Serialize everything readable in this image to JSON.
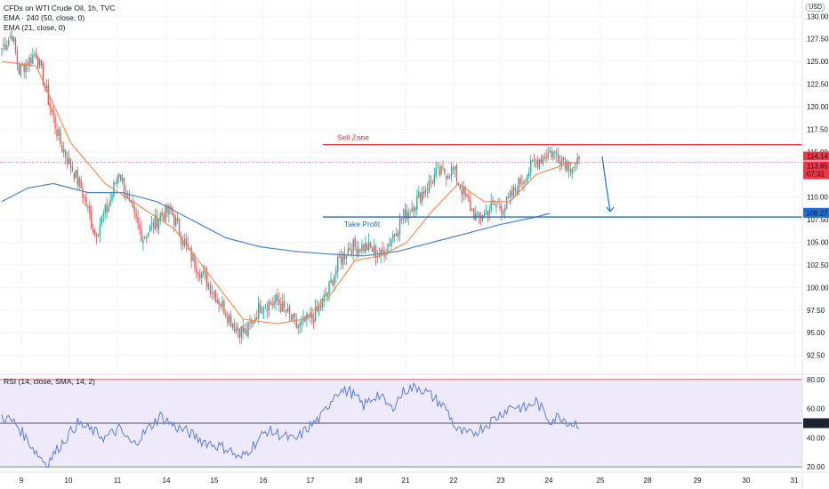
{
  "legend": {
    "title": "CFDs on WTI Crude Oil, 1h, TVC",
    "ema240": "EMA · 240 (50, close, 0)",
    "ema21": "EMA (21, close, 0)",
    "rsi": "RSI (14, close, SMA, 14, 2)"
  },
  "currency": "USD",
  "annotations": {
    "sell_zone": "Sell Zone",
    "take_profit": "Take Profit"
  },
  "price_labels": {
    "current_price": "113.85",
    "ask_price": "114.14",
    "countdown": "07:31",
    "target_price": "108.27",
    "rsi_value": "50.02"
  },
  "colors": {
    "sell_zone": "#f23645",
    "take_profit": "#1e6fd9",
    "ema21": "#f7874b",
    "ema240": "#4b82d4",
    "rsi_line": "#5b7fe0",
    "rsi_band": "#eeeafb",
    "up_candle": "#26a69a",
    "down_candle": "#ef5350"
  },
  "chart_data": [
    {
      "type": "candlestick",
      "title": "CFDs on WTI Crude Oil, 1h, TVC",
      "x_ticks": [
        "9",
        "10",
        "11",
        "14",
        "15",
        "16",
        "17",
        "18",
        "21",
        "22",
        "23",
        "24",
        "25",
        "28",
        "29",
        "30",
        "31"
      ],
      "y_ticks": [
        "92.50",
        "95.00",
        "97.50",
        "100.00",
        "102.50",
        "105.00",
        "107.50",
        "110.00",
        "112.50",
        "115.00",
        "117.50",
        "120.00",
        "122.50",
        "125.00",
        "127.50",
        "130.00"
      ],
      "ylim": [
        90.5,
        131.8
      ],
      "close_anchors": [
        [
          0,
          126.5
        ],
        [
          6,
          128.0
        ],
        [
          10,
          124.0
        ],
        [
          20,
          126.0
        ],
        [
          28,
          120.0
        ],
        [
          34,
          116.0
        ],
        [
          46,
          111.0
        ],
        [
          54,
          106.0
        ],
        [
          62,
          109.0
        ],
        [
          68,
          113.0
        ],
        [
          74,
          109.0
        ],
        [
          82,
          105.5
        ],
        [
          92,
          108.0
        ],
        [
          98,
          108.5
        ],
        [
          108,
          104.0
        ],
        [
          118,
          101.0
        ],
        [
          128,
          98.0
        ],
        [
          136,
          95.5
        ],
        [
          142,
          95.0
        ],
        [
          150,
          98.0
        ],
        [
          160,
          98.5
        ],
        [
          172,
          95.5
        ],
        [
          182,
          97.0
        ],
        [
          188,
          99.0
        ],
        [
          196,
          103.0
        ],
        [
          202,
          104.5
        ],
        [
          212,
          104.5
        ],
        [
          220,
          103.5
        ],
        [
          232,
          107.5
        ],
        [
          242,
          110.0
        ],
        [
          252,
          112.5
        ],
        [
          262,
          113.0
        ],
        [
          270,
          109.5
        ],
        [
          276,
          107.5
        ],
        [
          284,
          109.0
        ],
        [
          292,
          109.0
        ],
        [
          302,
          112.0
        ],
        [
          310,
          114.0
        ],
        [
          318,
          115.0
        ],
        [
          324,
          114.5
        ],
        [
          330,
          113.5
        ]
      ],
      "ema21_anchors": [
        [
          0,
          125.0
        ],
        [
          20,
          124.5
        ],
        [
          40,
          116.0
        ],
        [
          60,
          111.5
        ],
        [
          80,
          109.0
        ],
        [
          100,
          106.5
        ],
        [
          120,
          101.5
        ],
        [
          140,
          96.5
        ],
        [
          160,
          96.0
        ],
        [
          175,
          96.5
        ],
        [
          190,
          99.0
        ],
        [
          205,
          103.0
        ],
        [
          220,
          103.5
        ],
        [
          235,
          105.0
        ],
        [
          250,
          108.5
        ],
        [
          265,
          111.5
        ],
        [
          280,
          109.5
        ],
        [
          295,
          109.5
        ],
        [
          310,
          112.5
        ],
        [
          330,
          113.8
        ]
      ],
      "ema240_anchors": [
        [
          0,
          109.5
        ],
        [
          15,
          111.0
        ],
        [
          30,
          111.5
        ],
        [
          50,
          110.5
        ],
        [
          70,
          110.5
        ],
        [
          90,
          109.5
        ],
        [
          110,
          107.5
        ],
        [
          130,
          105.5
        ],
        [
          150,
          104.5
        ],
        [
          170,
          104.0
        ],
        [
          190,
          103.7
        ],
        [
          210,
          103.5
        ],
        [
          230,
          104.0
        ],
        [
          250,
          105.0
        ],
        [
          270,
          106.0
        ],
        [
          290,
          107.0
        ],
        [
          310,
          107.8
        ],
        [
          318,
          108.2
        ]
      ],
      "sell_zone": 115.8,
      "take_profit": 107.8,
      "projection": {
        "from": [
          335,
          114.5
        ],
        "to": [
          338,
          108.4
        ]
      },
      "current_price": 113.85,
      "target_price": 108.27,
      "n_bars": 336
    },
    {
      "type": "line",
      "title": "RSI (14, close, SMA, 14, 2)",
      "y_ticks": [
        "20.00",
        "40.00",
        "60.00",
        "80.00"
      ],
      "ylim": [
        17,
        83
      ],
      "upper_band": 80,
      "lower_band": 20,
      "rsi_anchors": [
        [
          0,
          55
        ],
        [
          8,
          50
        ],
        [
          14,
          40
        ],
        [
          20,
          30
        ],
        [
          26,
          22
        ],
        [
          34,
          35
        ],
        [
          44,
          50
        ],
        [
          52,
          45
        ],
        [
          60,
          40
        ],
        [
          68,
          46
        ],
        [
          76,
          35
        ],
        [
          84,
          45
        ],
        [
          92,
          55
        ],
        [
          100,
          48
        ],
        [
          108,
          44
        ],
        [
          116,
          38
        ],
        [
          124,
          35
        ],
        [
          132,
          32
        ],
        [
          138,
          25
        ],
        [
          146,
          35
        ],
        [
          154,
          45
        ],
        [
          162,
          42
        ],
        [
          170,
          38
        ],
        [
          178,
          47
        ],
        [
          186,
          55
        ],
        [
          194,
          72
        ],
        [
          202,
          72
        ],
        [
          210,
          62
        ],
        [
          218,
          70
        ],
        [
          226,
          60
        ],
        [
          234,
          73
        ],
        [
          242,
          75
        ],
        [
          250,
          68
        ],
        [
          258,
          60
        ],
        [
          264,
          45
        ],
        [
          272,
          42
        ],
        [
          280,
          48
        ],
        [
          288,
          55
        ],
        [
          296,
          62
        ],
        [
          304,
          60
        ],
        [
          310,
          65
        ],
        [
          318,
          52
        ],
        [
          324,
          55
        ],
        [
          330,
          50
        ]
      ],
      "current_value": 50.02,
      "reference_line": 50.02
    }
  ]
}
